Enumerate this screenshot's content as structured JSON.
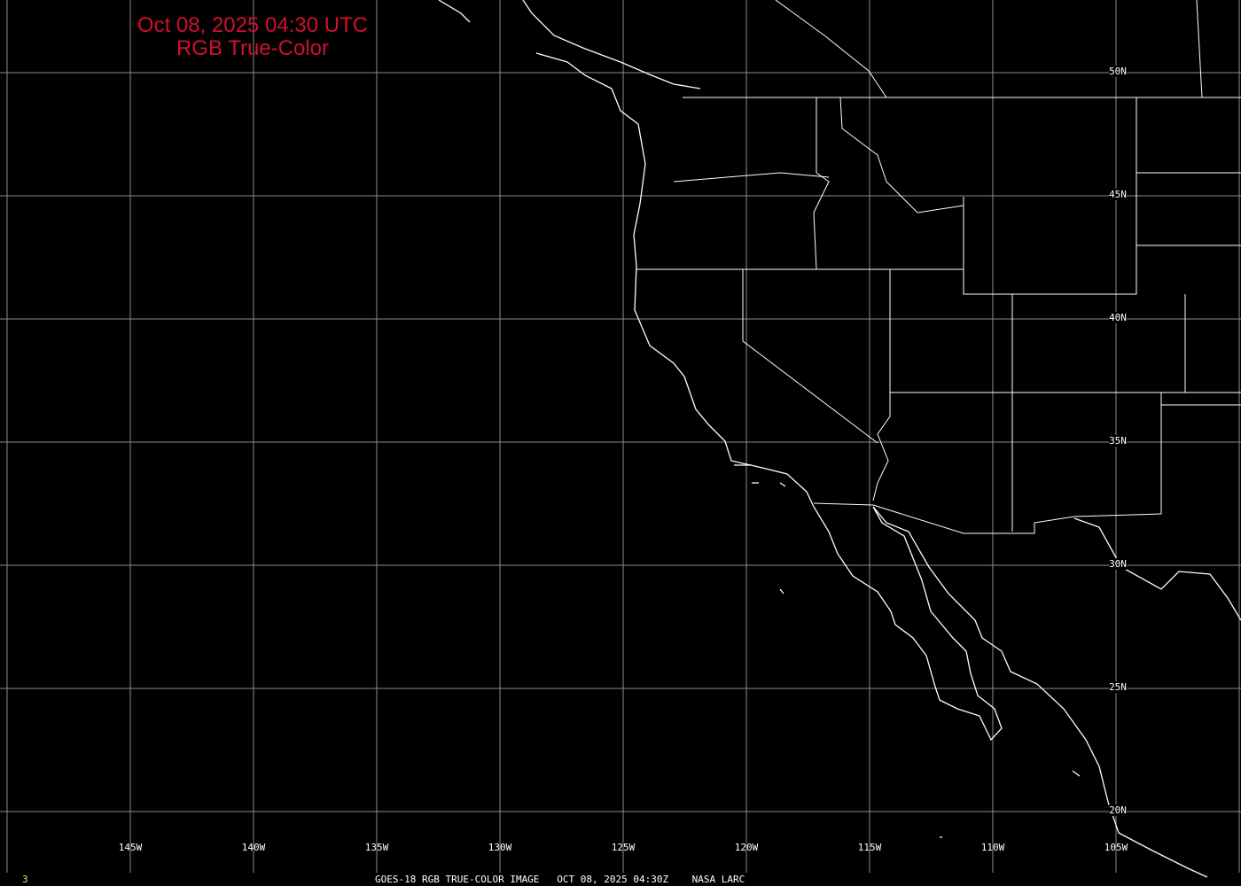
{
  "title": {
    "line1": "Oct 08, 2025 04:30 UTC",
    "line2": "RGB True-Color"
  },
  "footer": {
    "frame_number": "3",
    "caption": "GOES-18 RGB TRUE-COLOR IMAGE   OCT 08, 2025 04:30Z    NASA LARC"
  },
  "longitude_labels": [
    "145W",
    "140W",
    "135W",
    "130W",
    "125W",
    "120W",
    "115W",
    "110W",
    "105W"
  ],
  "latitude_labels": [
    "50N",
    "45N",
    "40N",
    "35N",
    "30N",
    "25N",
    "20N"
  ],
  "colors": {
    "background": "#000000",
    "title": "#d0102c",
    "grid": "#8c8c8c",
    "coast": "#ffffff",
    "frame_number": "#e8e060"
  }
}
